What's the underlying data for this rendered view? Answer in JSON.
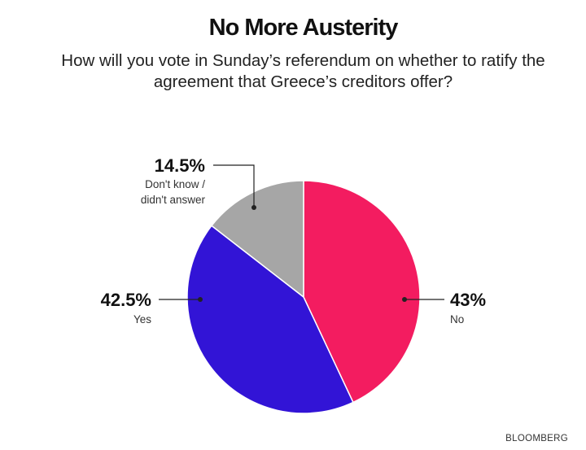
{
  "title": "No More Austerity",
  "subtitle": "How will you vote in Sunday’s referendum on whether to ratify the agreement that Greece’s creditors offer?",
  "source": "BLOOMBERG",
  "chart_data": {
    "type": "pie",
    "title": "No More Austerity",
    "subtitle": "How will you vote in Sunday’s referendum on whether to ratify the agreement that Greece’s creditors offer?",
    "slices": [
      {
        "label": "No",
        "value": 43,
        "value_label": "43%",
        "color": "#f31c60"
      },
      {
        "label": "Yes",
        "value": 42.5,
        "value_label": "42.5%",
        "color": "#3214d6"
      },
      {
        "label": "Don't know / didn't answer",
        "value": 14.5,
        "value_label": "14.5%",
        "color": "#a6a6a6"
      }
    ],
    "start": "12 o'clock",
    "direction": "clockwise",
    "legend": "none (direct labels)"
  }
}
